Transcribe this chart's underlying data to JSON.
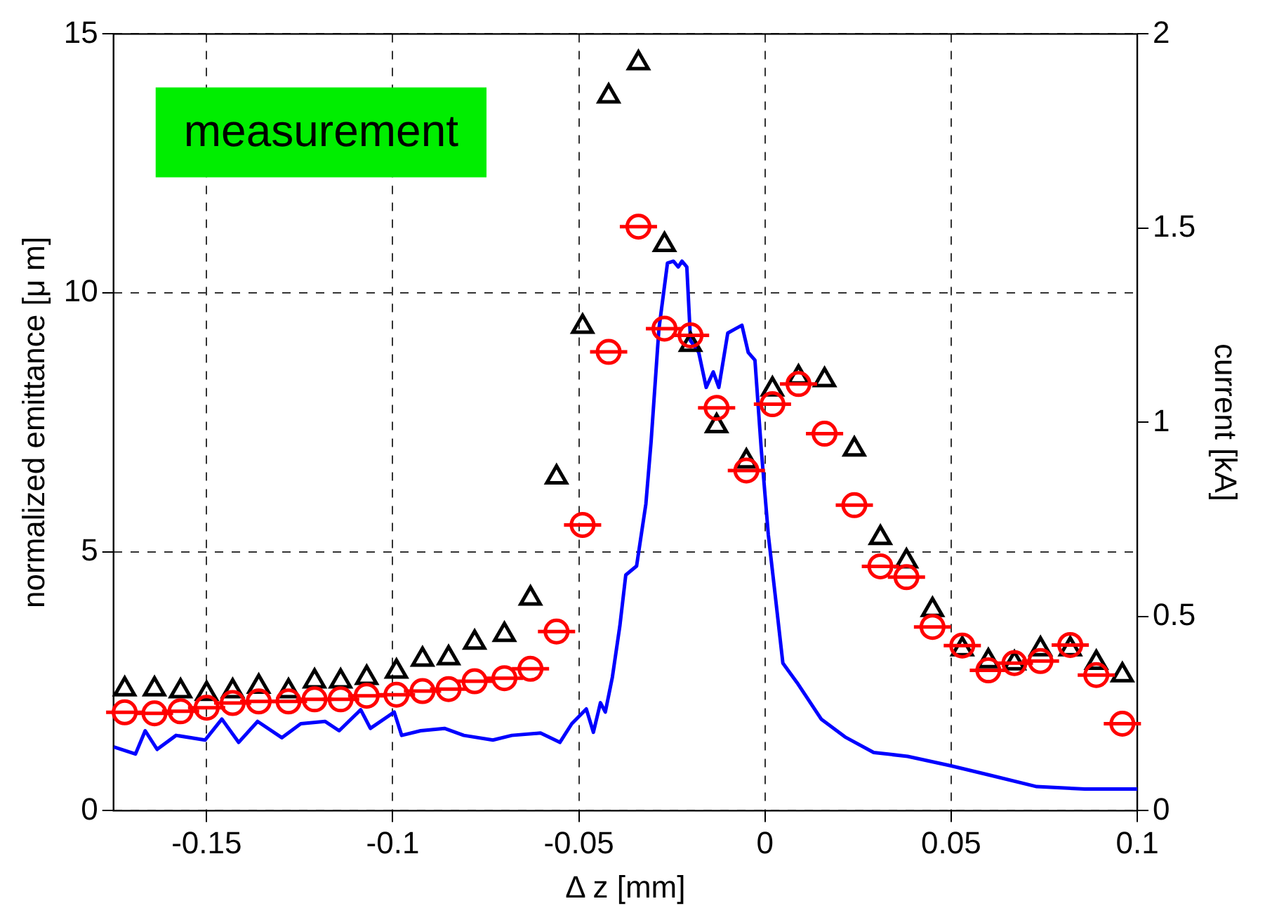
{
  "chart_data": {
    "type": "scatter",
    "xlabel": "Δ z [mm]",
    "ylabel": "normalized emittance [μ m]",
    "y2label": "current [kA]",
    "xlim": [
      -0.175,
      0.1
    ],
    "xticks": [
      -0.15,
      -0.1,
      -0.05,
      0,
      0.05,
      0.1
    ],
    "ylim": [
      0,
      15
    ],
    "yticks": [
      0,
      5,
      10,
      15
    ],
    "y2lim": [
      0,
      2
    ],
    "y2ticks": [
      0,
      0.5,
      1,
      1.5,
      2
    ],
    "grid": true,
    "annotations": [
      "measurement"
    ],
    "series": [
      {
        "type": "line",
        "axis": "y2",
        "color": "#0000ff",
        "marker": "none",
        "x": [
          -0.1749,
          -0.1691,
          -0.1665,
          -0.1633,
          -0.1582,
          -0.1504,
          -0.1459,
          -0.1414,
          -0.1363,
          -0.1298,
          -0.1247,
          -0.1182,
          -0.1144,
          -0.1086,
          -0.106,
          -0.0996,
          -0.0976,
          -0.0925,
          -0.0861,
          -0.0809,
          -0.0731,
          -0.068,
          -0.0603,
          -0.0551,
          -0.0519,
          -0.048,
          -0.0461,
          -0.0442,
          -0.0429,
          -0.041,
          -0.039,
          -0.0374,
          -0.0345,
          -0.032,
          -0.0306,
          -0.0285,
          -0.0262,
          -0.0246,
          -0.0233,
          -0.0223,
          -0.021,
          -0.02,
          -0.0178,
          -0.0158,
          -0.0139,
          -0.0124,
          -0.01,
          -0.0081,
          -0.0062,
          -0.0045,
          -0.0027,
          -0.001,
          0.0009,
          0.0028,
          0.0048,
          0.0086,
          0.0151,
          0.0215,
          0.0292,
          0.0383,
          0.0498,
          0.0602,
          0.073,
          0.0859,
          0.1
        ],
        "values": [
          0.164,
          0.146,
          0.206,
          0.158,
          0.194,
          0.182,
          0.236,
          0.176,
          0.23,
          0.188,
          0.224,
          0.23,
          0.206,
          0.26,
          0.212,
          0.254,
          0.194,
          0.206,
          0.212,
          0.194,
          0.182,
          0.194,
          0.2,
          0.176,
          0.224,
          0.262,
          0.202,
          0.278,
          0.254,
          0.344,
          0.475,
          0.607,
          0.63,
          0.79,
          0.95,
          1.24,
          1.41,
          1.415,
          1.4,
          1.415,
          1.4,
          1.21,
          1.18,
          1.09,
          1.13,
          1.09,
          1.23,
          1.24,
          1.25,
          1.18,
          1.16,
          0.93,
          0.71,
          0.55,
          0.38,
          0.33,
          0.236,
          0.19,
          0.15,
          0.14,
          0.116,
          0.092,
          0.062,
          0.056,
          0.056
        ]
      },
      {
        "color": "#000000",
        "marker": "triangle",
        "x": [
          -0.172,
          -0.164,
          -0.157,
          -0.15,
          -0.143,
          -0.136,
          -0.128,
          -0.121,
          -0.114,
          -0.107,
          -0.099,
          -0.092,
          -0.085,
          -0.078,
          -0.07,
          -0.063,
          -0.056,
          -0.049,
          -0.042,
          -0.034,
          -0.027,
          -0.02,
          -0.013,
          -0.005,
          0.002,
          0.009,
          0.016,
          0.024,
          0.031,
          0.038,
          0.045,
          0.053,
          0.06,
          0.067,
          0.074,
          0.082,
          0.089,
          0.096
        ],
        "values": [
          2.35,
          2.35,
          2.31,
          2.26,
          2.31,
          2.4,
          2.31,
          2.5,
          2.5,
          2.57,
          2.69,
          2.92,
          2.95,
          3.25,
          3.4,
          4.1,
          6.44,
          9.35,
          13.8,
          14.44,
          10.93,
          9.0,
          7.43,
          6.75,
          8.14,
          8.37,
          8.32,
          6.98,
          5.27,
          4.82,
          3.88,
          3.12,
          2.89,
          2.85,
          3.12,
          3.12,
          2.86,
          2.62
        ]
      },
      {
        "color": "#ff0000",
        "marker": "circle",
        "x": [
          -0.172,
          -0.164,
          -0.157,
          -0.15,
          -0.143,
          -0.136,
          -0.128,
          -0.121,
          -0.114,
          -0.107,
          -0.099,
          -0.092,
          -0.085,
          -0.078,
          -0.07,
          -0.063,
          -0.056,
          -0.049,
          -0.042,
          -0.034,
          -0.027,
          -0.02,
          -0.013,
          -0.005,
          0.002,
          0.009,
          0.016,
          0.024,
          0.031,
          0.038,
          0.045,
          0.053,
          0.06,
          0.067,
          0.074,
          0.082,
          0.089,
          0.096
        ],
        "values": [
          1.9,
          1.88,
          1.92,
          1.99,
          2.08,
          2.11,
          2.11,
          2.15,
          2.15,
          2.22,
          2.24,
          2.31,
          2.35,
          2.5,
          2.56,
          2.74,
          3.46,
          5.52,
          8.86,
          11.28,
          9.31,
          9.18,
          7.78,
          6.57,
          7.85,
          8.24,
          7.28,
          5.9,
          4.72,
          4.51,
          3.55,
          3.19,
          2.71,
          2.85,
          2.89,
          3.2,
          2.62,
          1.68
        ],
        "xerrors": [
          0.005,
          0.005,
          0.005,
          0.005,
          0.005,
          0.005,
          0.005,
          0.005,
          0.005,
          0.005,
          0.005,
          0.005,
          0.005,
          0.005,
          0.005,
          0.005,
          0.005,
          0.005,
          0.005,
          0.005,
          0.005,
          0.005,
          0.005,
          0.005,
          0.005,
          0.005,
          0.005,
          0.005,
          0.005,
          0.005,
          0.005,
          0.005,
          0.005,
          0.005,
          0.005,
          0.005,
          0.005,
          0.005
        ]
      }
    ]
  }
}
